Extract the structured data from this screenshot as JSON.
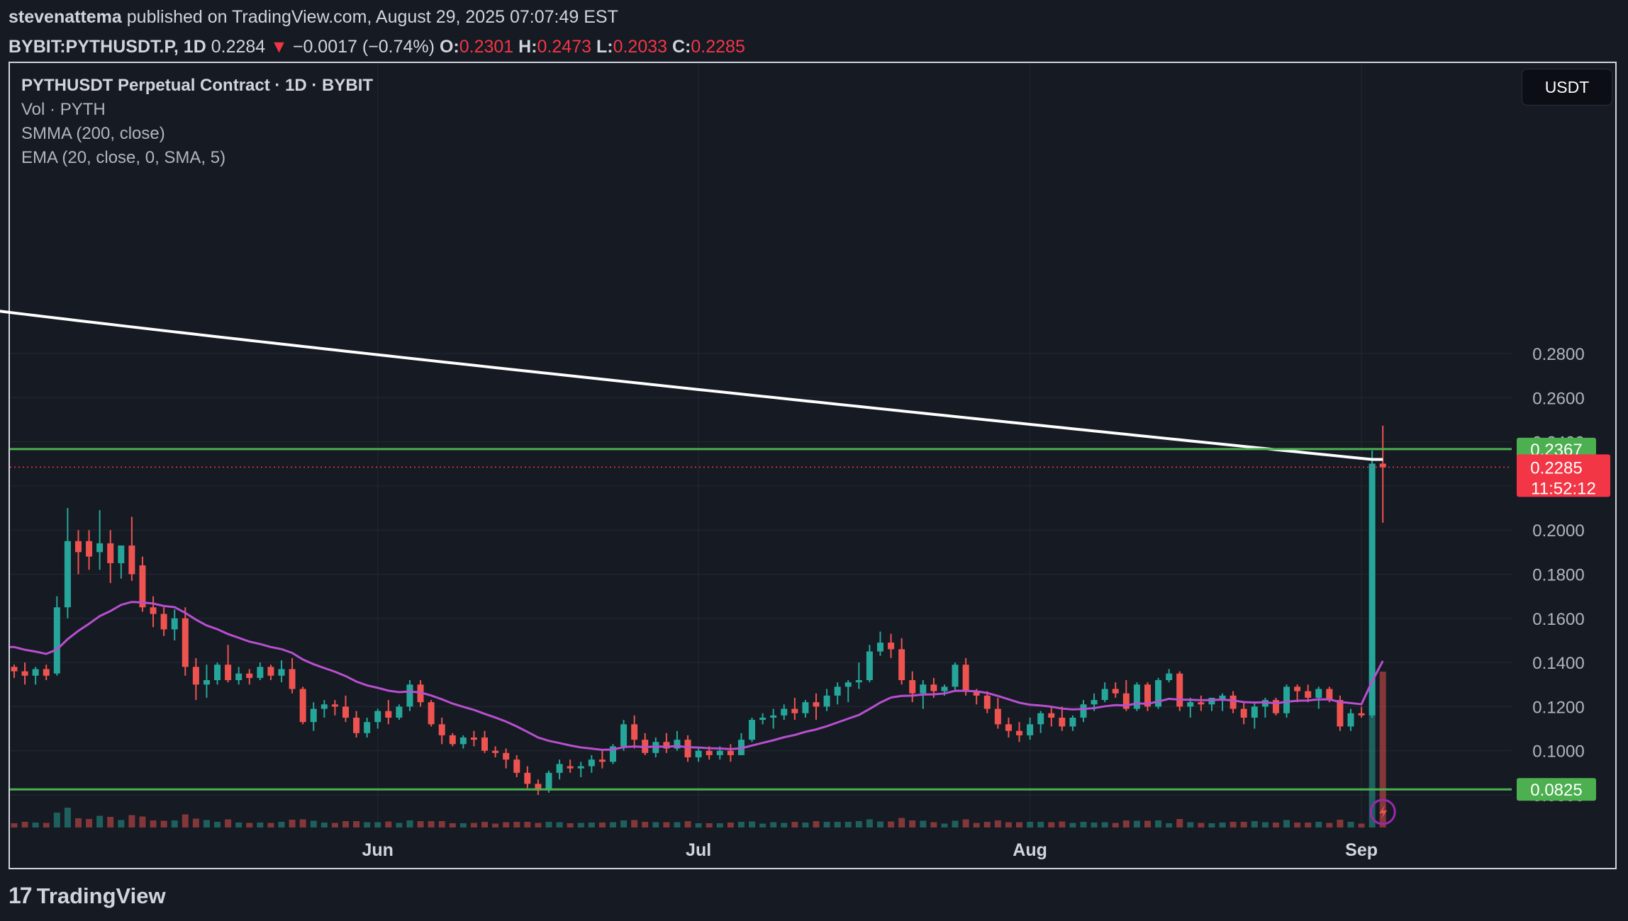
{
  "header": {
    "author": "stevenattema",
    "published": "published on TradingView.com, August 29, 2025 07:07:49 EST",
    "symbol": "BYBIT:PYTHUSDT.P, 1D",
    "last": "0.2284",
    "arrow": "▼",
    "change": "−0.0017 (−0.74%)",
    "o_label": "O:",
    "o_val": "0.2301",
    "h_label": "H:",
    "h_val": "0.2473",
    "l_label": "L:",
    "l_val": "0.2033",
    "c_label": "C:",
    "c_val": "0.2285"
  },
  "legend": {
    "title": "PYTHUSDT Perpetual Contract · 1D · BYBIT",
    "vol": "Vol · PYTH",
    "smma": "SMMA (200, close)",
    "ema": "EMA (20, close, 0, SMA, 5)"
  },
  "currency": "USDT",
  "footer": {
    "logo_text": "TradingView",
    "logo_icon": "tradingview-logo-icon"
  },
  "colors": {
    "up": "#26a69a",
    "down": "#ef5350",
    "smma": "#ffffff",
    "ema": "#b84fd0",
    "hline": "#4caf50",
    "price_tag": "#f23645",
    "grid": "#242833"
  },
  "chart_data": {
    "type": "candlestick",
    "interval": "1D",
    "ylim": [
      0.076,
      0.305
    ],
    "y_ticks": [
      "0.2800",
      "0.2600",
      "0.2400",
      "0.2200",
      "0.2000",
      "0.1800",
      "0.1600",
      "0.1400",
      "0.1200",
      "0.1000",
      "0.0800"
    ],
    "x_labels": [
      {
        "label": "Jun",
        "day": 34
      },
      {
        "label": "Jul",
        "day": 64
      },
      {
        "label": "Aug",
        "day": 95
      },
      {
        "label": "Sep",
        "day": 126
      }
    ],
    "horizontal_lines": [
      {
        "value": 0.2367,
        "label": "0.2367"
      },
      {
        "value": 0.0825,
        "label": "0.0825"
      }
    ],
    "last_price": {
      "value": 0.2285,
      "label": "0.2285",
      "countdown": "11:52:12"
    },
    "candles": [
      [
        0.138,
        0.139,
        0.133,
        0.136
      ],
      [
        0.136,
        0.14,
        0.13,
        0.134
      ],
      [
        0.134,
        0.138,
        0.13,
        0.137
      ],
      [
        0.137,
        0.139,
        0.132,
        0.134
      ],
      [
        0.135,
        0.17,
        0.134,
        0.165
      ],
      [
        0.165,
        0.21,
        0.16,
        0.195
      ],
      [
        0.195,
        0.2,
        0.18,
        0.19
      ],
      [
        0.195,
        0.2,
        0.182,
        0.188
      ],
      [
        0.19,
        0.209,
        0.182,
        0.194
      ],
      [
        0.194,
        0.2,
        0.176,
        0.185
      ],
      [
        0.185,
        0.193,
        0.178,
        0.193
      ],
      [
        0.193,
        0.206,
        0.177,
        0.18
      ],
      [
        0.184,
        0.188,
        0.163,
        0.165
      ],
      [
        0.165,
        0.17,
        0.156,
        0.162
      ],
      [
        0.162,
        0.165,
        0.152,
        0.155
      ],
      [
        0.155,
        0.164,
        0.15,
        0.16
      ],
      [
        0.16,
        0.165,
        0.134,
        0.138
      ],
      [
        0.138,
        0.142,
        0.123,
        0.13
      ],
      [
        0.13,
        0.139,
        0.124,
        0.132
      ],
      [
        0.132,
        0.14,
        0.13,
        0.139
      ],
      [
        0.139,
        0.148,
        0.131,
        0.132
      ],
      [
        0.132,
        0.138,
        0.13,
        0.135
      ],
      [
        0.135,
        0.137,
        0.13,
        0.133
      ],
      [
        0.133,
        0.14,
        0.132,
        0.138
      ],
      [
        0.138,
        0.139,
        0.132,
        0.134
      ],
      [
        0.134,
        0.141,
        0.131,
        0.137
      ],
      [
        0.137,
        0.142,
        0.126,
        0.128
      ],
      [
        0.128,
        0.129,
        0.112,
        0.113
      ],
      [
        0.113,
        0.122,
        0.109,
        0.119
      ],
      [
        0.119,
        0.123,
        0.115,
        0.121
      ],
      [
        0.121,
        0.123,
        0.116,
        0.12
      ],
      [
        0.12,
        0.125,
        0.113,
        0.115
      ],
      [
        0.115,
        0.118,
        0.106,
        0.108
      ],
      [
        0.108,
        0.115,
        0.106,
        0.113
      ],
      [
        0.113,
        0.119,
        0.11,
        0.118
      ],
      [
        0.118,
        0.123,
        0.112,
        0.115
      ],
      [
        0.115,
        0.121,
        0.114,
        0.12
      ],
      [
        0.12,
        0.132,
        0.118,
        0.13
      ],
      [
        0.13,
        0.132,
        0.12,
        0.122
      ],
      [
        0.122,
        0.123,
        0.111,
        0.112
      ],
      [
        0.112,
        0.115,
        0.103,
        0.107
      ],
      [
        0.107,
        0.108,
        0.102,
        0.103
      ],
      [
        0.103,
        0.107,
        0.101,
        0.106
      ],
      [
        0.106,
        0.109,
        0.102,
        0.105
      ],
      [
        0.106,
        0.109,
        0.099,
        0.1
      ],
      [
        0.1,
        0.102,
        0.097,
        0.099
      ],
      [
        0.099,
        0.101,
        0.092,
        0.096
      ],
      [
        0.096,
        0.098,
        0.088,
        0.09
      ],
      [
        0.09,
        0.093,
        0.083,
        0.085
      ],
      [
        0.085,
        0.087,
        0.08,
        0.082
      ],
      [
        0.082,
        0.091,
        0.081,
        0.09
      ],
      [
        0.09,
        0.096,
        0.087,
        0.094
      ],
      [
        0.093,
        0.096,
        0.09,
        0.092
      ],
      [
        0.092,
        0.095,
        0.088,
        0.093
      ],
      [
        0.093,
        0.098,
        0.09,
        0.096
      ],
      [
        0.096,
        0.1,
        0.092,
        0.095
      ],
      [
        0.095,
        0.103,
        0.094,
        0.102
      ],
      [
        0.102,
        0.114,
        0.1,
        0.112
      ],
      [
        0.112,
        0.116,
        0.101,
        0.105
      ],
      [
        0.105,
        0.108,
        0.098,
        0.099
      ],
      [
        0.099,
        0.106,
        0.097,
        0.104
      ],
      [
        0.104,
        0.108,
        0.099,
        0.101
      ],
      [
        0.101,
        0.109,
        0.1,
        0.105
      ],
      [
        0.105,
        0.107,
        0.095,
        0.097
      ],
      [
        0.097,
        0.101,
        0.095,
        0.1
      ],
      [
        0.1,
        0.102,
        0.096,
        0.098
      ],
      [
        0.098,
        0.102,
        0.096,
        0.1
      ],
      [
        0.1,
        0.103,
        0.095,
        0.098
      ],
      [
        0.098,
        0.108,
        0.098,
        0.105
      ],
      [
        0.105,
        0.115,
        0.104,
        0.114
      ],
      [
        0.114,
        0.117,
        0.112,
        0.115
      ],
      [
        0.115,
        0.119,
        0.11,
        0.116
      ],
      [
        0.116,
        0.121,
        0.114,
        0.119
      ],
      [
        0.119,
        0.124,
        0.114,
        0.117
      ],
      [
        0.117,
        0.123,
        0.115,
        0.122
      ],
      [
        0.122,
        0.126,
        0.114,
        0.12
      ],
      [
        0.12,
        0.128,
        0.118,
        0.125
      ],
      [
        0.125,
        0.131,
        0.121,
        0.129
      ],
      [
        0.129,
        0.132,
        0.122,
        0.131
      ],
      [
        0.131,
        0.14,
        0.128,
        0.132
      ],
      [
        0.132,
        0.148,
        0.131,
        0.145
      ],
      [
        0.145,
        0.154,
        0.143,
        0.149
      ],
      [
        0.149,
        0.153,
        0.142,
        0.146
      ],
      [
        0.146,
        0.151,
        0.13,
        0.132
      ],
      [
        0.132,
        0.136,
        0.122,
        0.126
      ],
      [
        0.126,
        0.132,
        0.119,
        0.13
      ],
      [
        0.13,
        0.133,
        0.124,
        0.127
      ],
      [
        0.127,
        0.13,
        0.125,
        0.129
      ],
      [
        0.129,
        0.14,
        0.127,
        0.139
      ],
      [
        0.139,
        0.142,
        0.125,
        0.127
      ],
      [
        0.127,
        0.128,
        0.121,
        0.125
      ],
      [
        0.125,
        0.127,
        0.117,
        0.119
      ],
      [
        0.119,
        0.124,
        0.11,
        0.112
      ],
      [
        0.112,
        0.115,
        0.106,
        0.109
      ],
      [
        0.109,
        0.113,
        0.104,
        0.107
      ],
      [
        0.107,
        0.115,
        0.105,
        0.112
      ],
      [
        0.112,
        0.118,
        0.108,
        0.117
      ],
      [
        0.117,
        0.12,
        0.111,
        0.115
      ],
      [
        0.115,
        0.12,
        0.109,
        0.111
      ],
      [
        0.111,
        0.116,
        0.109,
        0.115
      ],
      [
        0.115,
        0.123,
        0.113,
        0.121
      ],
      [
        0.121,
        0.126,
        0.118,
        0.123
      ],
      [
        0.123,
        0.131,
        0.122,
        0.128
      ],
      [
        0.128,
        0.131,
        0.124,
        0.126
      ],
      [
        0.126,
        0.132,
        0.118,
        0.119
      ],
      [
        0.119,
        0.131,
        0.118,
        0.13
      ],
      [
        0.13,
        0.131,
        0.118,
        0.12
      ],
      [
        0.12,
        0.133,
        0.119,
        0.132
      ],
      [
        0.132,
        0.137,
        0.131,
        0.135
      ],
      [
        0.135,
        0.136,
        0.118,
        0.12
      ],
      [
        0.12,
        0.124,
        0.115,
        0.122
      ],
      [
        0.122,
        0.125,
        0.118,
        0.121
      ],
      [
        0.121,
        0.124,
        0.118,
        0.124
      ],
      [
        0.123,
        0.126,
        0.118,
        0.125
      ],
      [
        0.125,
        0.127,
        0.117,
        0.119
      ],
      [
        0.119,
        0.122,
        0.112,
        0.115
      ],
      [
        0.115,
        0.122,
        0.11,
        0.12
      ],
      [
        0.12,
        0.124,
        0.115,
        0.123
      ],
      [
        0.123,
        0.124,
        0.116,
        0.117
      ],
      [
        0.117,
        0.13,
        0.115,
        0.129
      ],
      [
        0.129,
        0.13,
        0.122,
        0.127
      ],
      [
        0.127,
        0.13,
        0.122,
        0.124
      ],
      [
        0.124,
        0.129,
        0.119,
        0.128
      ],
      [
        0.128,
        0.129,
        0.122,
        0.123
      ],
      [
        0.123,
        0.125,
        0.109,
        0.111
      ],
      [
        0.111,
        0.119,
        0.109,
        0.117
      ],
      [
        0.117,
        0.12,
        0.115,
        0.116
      ],
      [
        0.116,
        0.236,
        0.115,
        0.2301
      ],
      [
        0.2301,
        0.2473,
        0.2033,
        0.2285
      ]
    ],
    "volume_tail": {
      "up": 0.38,
      "down": 0.52
    }
  }
}
